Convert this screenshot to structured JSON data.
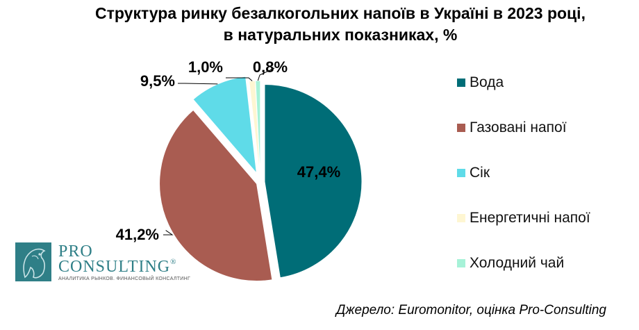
{
  "title_line1": "Структура ринку безалкогольних напоїв в Україні в 2023 році,",
  "title_line2": "в натуральних показниках, %",
  "source": "Джерело: Euromonitor, оцінка Pro-Consulting",
  "logo": {
    "pro": "PRO",
    "consulting": "CONSULTING",
    "registered": "®",
    "tagline": "АНАЛИТИКА РЫНКОВ. ФИНАНСОВЫЙ КОНСАЛТИНГ"
  },
  "chart_data": {
    "type": "pie",
    "title": "Структура ринку безалкогольних напоїв в Україні в 2023 році, в натуральних показниках, %",
    "legend_position": "right",
    "slices": [
      {
        "label": "Вода",
        "value": 47.4,
        "display": "47,4%",
        "color": "#006d77"
      },
      {
        "label": "Газовані напої",
        "value": 41.2,
        "display": "41,2%",
        "color": "#a95c51"
      },
      {
        "label": "Сік",
        "value": 9.5,
        "display": "9,5%",
        "color": "#5fdbe8"
      },
      {
        "label": "Енергетичні напої",
        "value": 1.0,
        "display": "1,0%",
        "color": "#fef6d2"
      },
      {
        "label": "Холодний чай",
        "value": 0.8,
        "display": "0,8%",
        "color": "#a7f2d8"
      }
    ]
  }
}
